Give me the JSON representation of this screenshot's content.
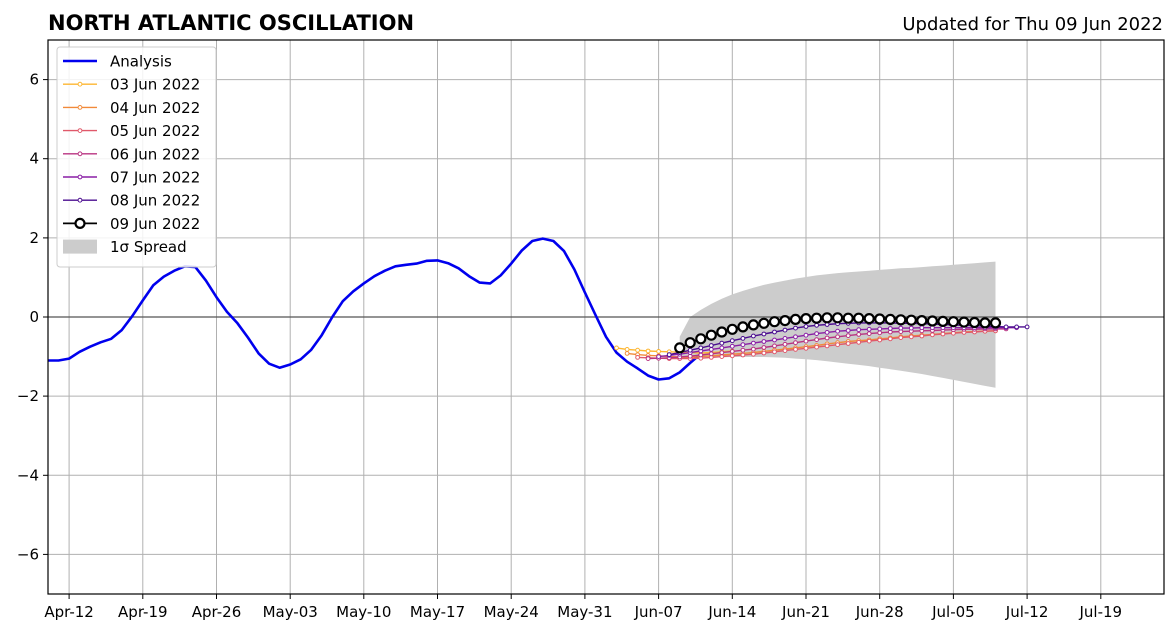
{
  "chart_data": {
    "type": "line",
    "title": "NORTH ATLANTIC OSCILLATION",
    "subtitle": "Updated for Thu 09 Jun 2022",
    "xlabel": "",
    "ylabel": "",
    "xlim": [
      "2022-04-10",
      "2022-07-25"
    ],
    "ylim": [
      -7,
      7
    ],
    "grid": true,
    "legend_position": "top-left",
    "x_ticks": [
      "2022-04-12",
      "2022-04-19",
      "2022-04-26",
      "2022-05-03",
      "2022-05-10",
      "2022-05-17",
      "2022-05-24",
      "2022-05-31",
      "2022-06-07",
      "2022-06-14",
      "2022-06-21",
      "2022-06-28",
      "2022-07-05",
      "2022-07-12",
      "2022-07-19"
    ],
    "x_tick_labels": [
      "Apr-12",
      "Apr-19",
      "Apr-26",
      "May-03",
      "May-10",
      "May-17",
      "May-24",
      "May-31",
      "Jun-07",
      "Jun-14",
      "Jun-21",
      "Jun-28",
      "Jul-05",
      "Jul-12",
      "Jul-19"
    ],
    "y_ticks": [
      6,
      4,
      2,
      0,
      -2,
      -4,
      -6
    ],
    "y_tick_labels": [
      "6",
      "4",
      "2",
      "0",
      "−2",
      "−4",
      "−6"
    ],
    "analysis": {
      "name": "Analysis",
      "color": "#0000ee",
      "start": "2022-04-10",
      "step_days": 1,
      "values": [
        -1.1,
        -1.1,
        -1.05,
        -0.88,
        -0.75,
        -0.64,
        -0.55,
        -0.33,
        0.02,
        0.42,
        0.8,
        1.02,
        1.17,
        1.28,
        1.26,
        0.92,
        0.5,
        0.13,
        -0.16,
        -0.52,
        -0.92,
        -1.18,
        -1.28,
        -1.2,
        -1.07,
        -0.83,
        -0.46,
        0.0,
        0.4,
        0.65,
        0.85,
        1.03,
        1.17,
        1.28,
        1.32,
        1.35,
        1.42,
        1.43,
        1.36,
        1.23,
        1.03,
        0.87,
        0.85,
        1.05,
        1.35,
        1.68,
        1.92,
        1.98,
        1.92,
        1.67,
        1.2,
        0.62,
        0.05,
        -0.5,
        -0.9,
        -1.13,
        -1.3,
        -1.48,
        -1.58,
        -1.55,
        -1.4,
        -1.16,
        -0.93
      ]
    },
    "forecasts": [
      {
        "name": "03 Jun 2022",
        "color": "#fdb631",
        "start": "2022-06-03",
        "step_days": 1,
        "values": [
          -0.78,
          -0.82,
          -0.84,
          -0.86,
          -0.87,
          -0.88,
          -0.89,
          -0.9,
          -0.91,
          -0.9,
          -0.88,
          -0.86
        ]
      },
      {
        "name": "04 Jun 2022",
        "color": "#f18a3a",
        "start": "2022-06-04",
        "step_days": 1,
        "values": [
          -0.92,
          -0.95,
          -0.97,
          -0.98,
          -1.0,
          -1.01,
          -1.02,
          -1.0,
          -0.98,
          -0.96,
          -0.94,
          -0.92,
          -0.9,
          -0.87,
          -0.84,
          -0.81,
          -0.78,
          -0.75,
          -0.72,
          -0.68,
          -0.65,
          -0.62,
          -0.6,
          -0.58,
          -0.55,
          -0.53,
          -0.5,
          -0.48,
          -0.46,
          -0.44,
          -0.42,
          -0.4,
          -0.38,
          -0.37,
          -0.36,
          -0.35
        ]
      },
      {
        "name": "05 Jun 2022",
        "color": "#e0596a",
        "start": "2022-06-05",
        "step_days": 1,
        "values": [
          -1.02,
          -1.03,
          -1.04,
          -1.05,
          -1.05,
          -1.05,
          -1.04,
          -1.02,
          -1.0,
          -0.98,
          -0.96,
          -0.94,
          -0.91,
          -0.88,
          -0.85,
          -0.82,
          -0.79,
          -0.76,
          -0.73,
          -0.7,
          -0.67,
          -0.64,
          -0.61,
          -0.58,
          -0.55,
          -0.52,
          -0.5,
          -0.48,
          -0.45,
          -0.43,
          -0.41,
          -0.39,
          -0.38,
          -0.36,
          -0.35
        ]
      },
      {
        "name": "06 Jun 2022",
        "color": "#b83281",
        "start": "2022-06-06",
        "step_days": 1,
        "values": [
          -1.05,
          -1.04,
          -1.03,
          -1.01,
          -0.99,
          -0.96,
          -0.93,
          -0.9,
          -0.87,
          -0.84,
          -0.81,
          -0.77,
          -0.73,
          -0.69,
          -0.65,
          -0.61,
          -0.57,
          -0.53,
          -0.5,
          -0.47,
          -0.44,
          -0.42,
          -0.4,
          -0.38,
          -0.37,
          -0.36,
          -0.35,
          -0.34,
          -0.33,
          -0.32,
          -0.31,
          -0.31,
          -0.3,
          -0.3,
          -0.3
        ]
      },
      {
        "name": "07 Jun 2022",
        "color": "#8a1fa6",
        "start": "2022-06-07",
        "step_days": 1,
        "values": [
          -1.0,
          -0.97,
          -0.94,
          -0.9,
          -0.86,
          -0.82,
          -0.78,
          -0.74,
          -0.7,
          -0.66,
          -0.62,
          -0.58,
          -0.54,
          -0.5,
          -0.46,
          -0.42,
          -0.39,
          -0.36,
          -0.34,
          -0.32,
          -0.31,
          -0.3,
          -0.29,
          -0.28,
          -0.28,
          -0.27,
          -0.27,
          -0.27,
          -0.27,
          -0.27,
          -0.27,
          -0.27,
          -0.27,
          -0.27,
          -0.27
        ]
      },
      {
        "name": "08 Jun 2022",
        "color": "#4a0c8f",
        "start": "2022-06-08",
        "step_days": 1,
        "values": [
          -0.95,
          -0.9,
          -0.84,
          -0.78,
          -0.72,
          -0.66,
          -0.6,
          -0.54,
          -0.48,
          -0.43,
          -0.38,
          -0.33,
          -0.28,
          -0.24,
          -0.21,
          -0.19,
          -0.17,
          -0.16,
          -0.15,
          -0.15,
          -0.15,
          -0.15,
          -0.16,
          -0.16,
          -0.17,
          -0.18,
          -0.19,
          -0.2,
          -0.21,
          -0.22,
          -0.23,
          -0.24,
          -0.25,
          -0.25,
          -0.25
        ]
      },
      {
        "name": "09 Jun 2022",
        "color": "#000000",
        "start": "2022-06-09",
        "step_days": 1,
        "markers": true,
        "values": [
          -0.78,
          -0.65,
          -0.55,
          -0.46,
          -0.38,
          -0.31,
          -0.25,
          -0.2,
          -0.16,
          -0.12,
          -0.09,
          -0.06,
          -0.04,
          -0.03,
          -0.02,
          -0.02,
          -0.03,
          -0.03,
          -0.04,
          -0.05,
          -0.06,
          -0.07,
          -0.08,
          -0.09,
          -0.1,
          -0.11,
          -0.12,
          -0.13,
          -0.14,
          -0.15,
          -0.15
        ]
      }
    ],
    "spread": {
      "name": "1σ Spread",
      "color": "#cccccc",
      "start": "2022-06-09",
      "step_days": 1,
      "upper": [
        -0.5,
        0.0,
        0.18,
        0.33,
        0.46,
        0.57,
        0.66,
        0.74,
        0.81,
        0.87,
        0.92,
        0.97,
        1.01,
        1.05,
        1.08,
        1.11,
        1.13,
        1.15,
        1.17,
        1.19,
        1.21,
        1.23,
        1.24,
        1.26,
        1.28,
        1.3,
        1.32,
        1.34,
        1.36,
        1.38,
        1.4
      ],
      "lower": [
        -1.03,
        -1.03,
        -1.02,
        -1.02,
        -1.02,
        -1.01,
        -1.01,
        -1.01,
        -1.01,
        -1.02,
        -1.03,
        -1.05,
        -1.07,
        -1.09,
        -1.12,
        -1.15,
        -1.18,
        -1.21,
        -1.24,
        -1.28,
        -1.32,
        -1.36,
        -1.4,
        -1.44,
        -1.49,
        -1.54,
        -1.59,
        -1.64,
        -1.69,
        -1.74,
        -1.79
      ]
    }
  }
}
